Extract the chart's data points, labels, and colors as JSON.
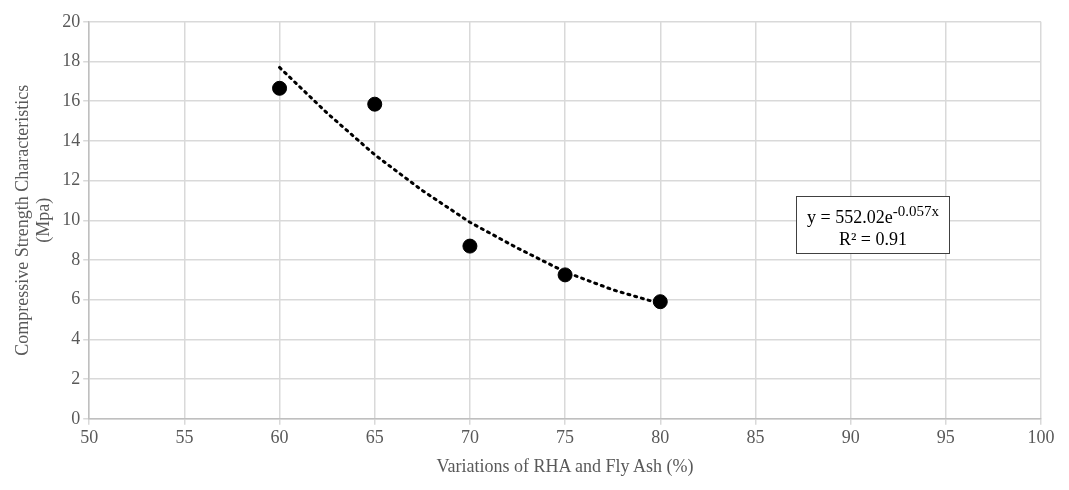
{
  "chart_data": {
    "type": "scatter",
    "xlabel": "Variations of RHA and Fly Ash (%)",
    "ylabel": "Compressive Strength Characteristics (Mpa)",
    "xlim": [
      50,
      100
    ],
    "xticks": [
      50,
      55,
      60,
      65,
      70,
      75,
      80,
      85,
      90,
      95,
      100
    ],
    "ylim": [
      0,
      20
    ],
    "yticks": [
      0,
      2,
      4,
      6,
      8,
      10,
      12,
      14,
      16,
      18,
      20
    ],
    "grid": true,
    "marker": "circle",
    "series": [
      {
        "type": "scatter",
        "color": "#000000",
        "x": [
          60,
          65,
          70,
          75,
          80
        ],
        "values": [
          16.65,
          15.85,
          8.7,
          7.25,
          5.9
        ]
      },
      {
        "type": "line",
        "color": "#000000",
        "marker": "none",
        "line_style": "dotted",
        "x": [
          60,
          62.5,
          65,
          67.5,
          70,
          72.5,
          75,
          77.5,
          80
        ],
        "values": [
          17.7,
          15.4,
          13.3,
          11.5,
          9.9,
          8.6,
          7.4,
          6.5,
          5.8
        ]
      }
    ],
    "annotations": [
      "y = 552.02e$^{-0.057x}$",
      "R² = 0.91"
    ]
  }
}
